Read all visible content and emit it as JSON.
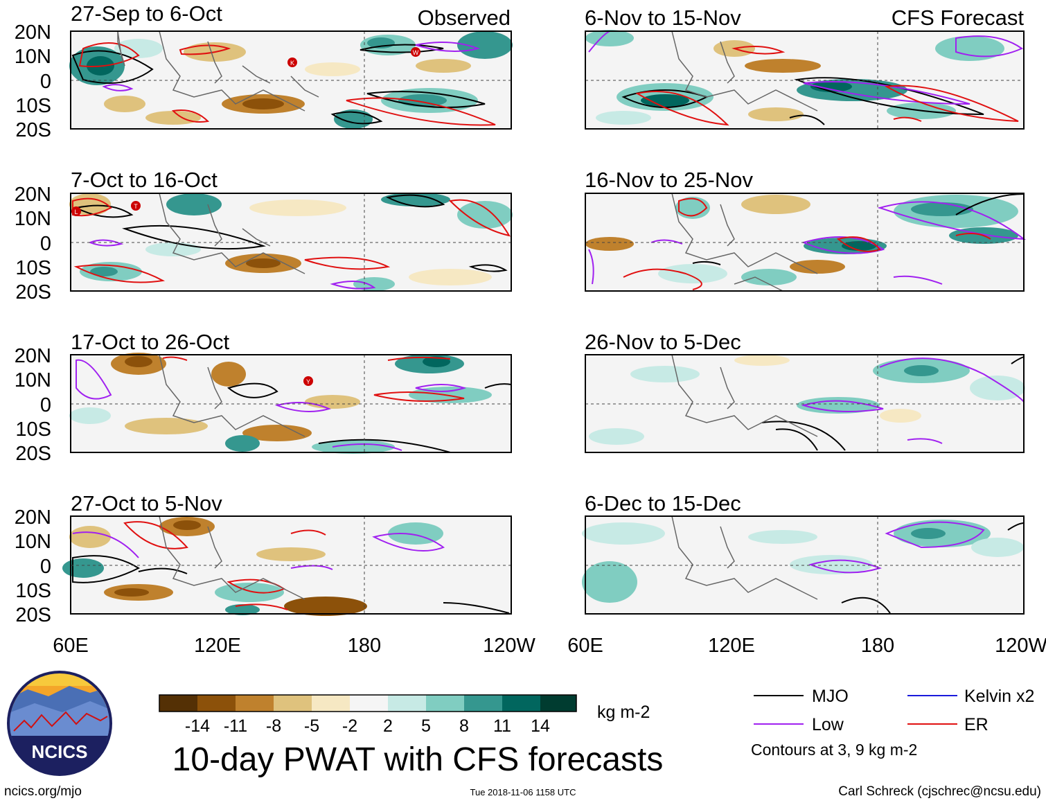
{
  "figure": {
    "title": "10-day PWAT with CFS forecasts",
    "units": "kg m-2",
    "footer_left": "ncics.org/mjo",
    "footer_center": "Tue 2018-11-06 1158 UTC",
    "footer_right": "Carl Schreck (cjschrec@ncsu.edu)",
    "logo_text": "NCICS"
  },
  "axes": {
    "lat_labels": [
      "20N",
      "10N",
      "0",
      "10S",
      "20S"
    ],
    "lon_labels": [
      "60E",
      "120E",
      "180",
      "120W"
    ]
  },
  "columns": {
    "left_label": "Observed",
    "right_label": "CFS Forecast"
  },
  "panels": [
    {
      "id": "p1",
      "title": "27-Sep to 6-Oct",
      "type": "observed"
    },
    {
      "id": "p2",
      "title": "7-Oct to 16-Oct",
      "type": "observed"
    },
    {
      "id": "p3",
      "title": "17-Oct to 26-Oct",
      "type": "observed"
    },
    {
      "id": "p4",
      "title": "27-Oct to 5-Nov",
      "type": "observed"
    },
    {
      "id": "p5",
      "title": "6-Nov to 15-Nov",
      "type": "forecast"
    },
    {
      "id": "p6",
      "title": "16-Nov to 25-Nov",
      "type": "forecast"
    },
    {
      "id": "p7",
      "title": "26-Nov to 5-Dec",
      "type": "forecast"
    },
    {
      "id": "p8",
      "title": "6-Dec to 15-Dec",
      "type": "forecast"
    }
  ],
  "colorbar": {
    "ticks": [
      "-14",
      "-11",
      "-8",
      "-5",
      "-2",
      "2",
      "5",
      "8",
      "11",
      "14"
    ],
    "colors": [
      "#543005",
      "#8c510a",
      "#bf812d",
      "#dfc27d",
      "#f6e8c3",
      "#f5f5f5",
      "#c7eae5",
      "#80cdc1",
      "#35978f",
      "#01665e",
      "#003c30"
    ]
  },
  "legend": {
    "items": [
      {
        "label": "MJO",
        "color": "#000000"
      },
      {
        "label": "Kelvin x2",
        "color": "#1a1adc"
      },
      {
        "label": "Low",
        "color": "#a020f0"
      },
      {
        "label": "ER",
        "color": "#e01010"
      }
    ],
    "note": "Contours at 3, 9 kg m-2"
  },
  "storm_markers": [
    {
      "panel": "p1",
      "letter": "K"
    },
    {
      "panel": "p1",
      "letter": "W"
    },
    {
      "panel": "p2",
      "letter": "L"
    },
    {
      "panel": "p2",
      "letter": "T"
    },
    {
      "panel": "p3",
      "letter": "Y"
    }
  ]
}
